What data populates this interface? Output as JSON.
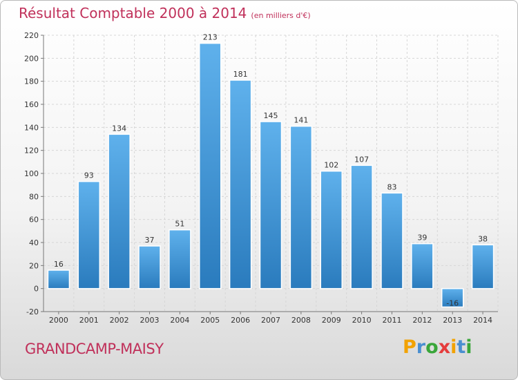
{
  "title": "Résultat Comptable 2000 à 2014",
  "subtitle": "(en milliers d'€)",
  "city": "GRANDCAMP-MAISY",
  "logo": {
    "letters": [
      "P",
      "r",
      "o",
      "x",
      "i",
      "t",
      "i"
    ],
    "colors": [
      "#f2a200",
      "#4a8fd0",
      "#3aa63a",
      "#e53c3c",
      "#f2a200",
      "#4a8fd0",
      "#3aa63a"
    ]
  },
  "chart_data": {
    "type": "bar",
    "categories": [
      "2000",
      "2001",
      "2002",
      "2003",
      "2004",
      "2005",
      "2006",
      "2007",
      "2008",
      "2009",
      "2010",
      "2011",
      "2012",
      "2013",
      "2014"
    ],
    "values": [
      16,
      93,
      134,
      37,
      51,
      213,
      181,
      145,
      141,
      102,
      107,
      83,
      39,
      -16,
      38
    ],
    "ylim": [
      -20,
      220
    ],
    "yticks": [
      -20,
      0,
      20,
      40,
      60,
      80,
      100,
      120,
      140,
      160,
      180,
      200,
      220
    ],
    "grid": true,
    "bar_color": "#3d92d8"
  }
}
